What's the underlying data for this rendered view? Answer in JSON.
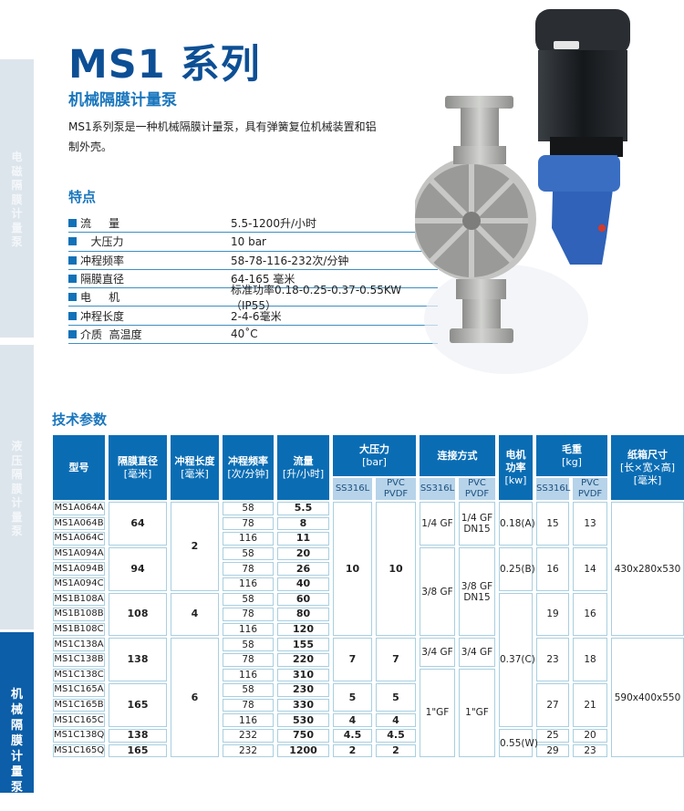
{
  "sidebar": {
    "tabs": [
      {
        "label": [
          "电",
          "磁",
          "隔",
          "膜",
          "计",
          "量",
          "泵"
        ],
        "active": false
      },
      {
        "label": [
          "液",
          "压",
          "隔",
          "膜",
          "计",
          "量",
          "泵"
        ],
        "active": false
      },
      {
        "label": [
          "机",
          "械",
          "隔",
          "膜",
          "计",
          "量",
          "泵",
          "及"
        ],
        "active": true
      }
    ]
  },
  "header": {
    "title": "MS1 系列",
    "subtitle": "机械隔膜计量泵",
    "description": "MS1系列泵是一种机械隔膜计量泵，具有弹簧复位机械装置和铝制外壳。"
  },
  "features": {
    "title": "特点",
    "items": [
      {
        "label": "流     量",
        "value": "5.5-1200升/小时"
      },
      {
        "label": "   大压力",
        "value": "10 bar"
      },
      {
        "label": "冲程频率",
        "value": "58-78-116-232次/分钟"
      },
      {
        "label": "隔膜直径",
        "value": "64-165 毫米"
      },
      {
        "label": "电     机",
        "value": "标准功率0.18-0.25-0.37-0.55KW（IP55）"
      },
      {
        "label": "冲程长度",
        "value": "2-4-6毫米"
      },
      {
        "label": "介质  高温度",
        "value": "40˚C"
      }
    ]
  },
  "pump_image": {
    "colors": {
      "motor": "#23272b",
      "housing": "#2f62b8",
      "steel": "#a8a9a6"
    }
  },
  "tech": {
    "title": "技术参数",
    "headers": {
      "model": "型号",
      "diameter": "隔膜直径",
      "diameter_unit": "[毫米]",
      "stroke": "冲程长度",
      "stroke_unit": "[毫米]",
      "freq": "冲程频率",
      "freq_unit": "[次/分钟]",
      "flow": "流量",
      "flow_unit": "[升/小时]",
      "pressure": "大压力",
      "pressure_unit": "[bar]",
      "conn": "连接方式",
      "power": "电机\n功率",
      "power_unit": "[kw]",
      "weight": "毛重",
      "weight_unit": "[kg]",
      "box": "纸箱尺寸",
      "box_unit1": "[长×宽×高]",
      "box_unit2": "[毫米]",
      "ss": "SS316L",
      "pvc": "PVC\nPVDF"
    },
    "rows": [
      {
        "model": "MS1A064A",
        "freq": "58",
        "flow": "5.5"
      },
      {
        "model": "MS1A064B",
        "freq": "78",
        "flow": "8"
      },
      {
        "model": "MS1A064C",
        "freq": "116",
        "flow": "11"
      },
      {
        "model": "MS1A094A",
        "freq": "58",
        "flow": "20"
      },
      {
        "model": "MS1A094B",
        "freq": "78",
        "flow": "26"
      },
      {
        "model": "MS1A094C",
        "freq": "116",
        "flow": "40"
      },
      {
        "model": "MS1B108A",
        "freq": "58",
        "flow": "60"
      },
      {
        "model": "MS1B108B",
        "freq": "78",
        "flow": "80"
      },
      {
        "model": "MS1B108C",
        "freq": "116",
        "flow": "120"
      },
      {
        "model": "MS1C138A",
        "freq": "58",
        "flow": "155"
      },
      {
        "model": "MS1C138B",
        "freq": "78",
        "flow": "220"
      },
      {
        "model": "MS1C138C",
        "freq": "116",
        "flow": "310"
      },
      {
        "model": "MS1C165A",
        "freq": "58",
        "flow": "230"
      },
      {
        "model": "MS1C165B",
        "freq": "78",
        "flow": "330"
      },
      {
        "model": "MS1C165C",
        "freq": "116",
        "flow": "530"
      },
      {
        "model": "MS1C138Q",
        "freq": "232",
        "flow": "750"
      },
      {
        "model": "MS1C165Q",
        "freq": "232",
        "flow": "1200"
      }
    ],
    "diameter": [
      "64",
      "94",
      "108",
      "138",
      "165",
      "138",
      "165"
    ],
    "stroke": [
      "2",
      "4",
      "6"
    ],
    "pressure_ss": [
      "10",
      "7",
      "5",
      "4",
      "4.5",
      "2"
    ],
    "pressure_pvc": [
      "10",
      "7",
      "5",
      "4",
      "4.5",
      "2"
    ],
    "conn_ss": [
      "1/4 GF",
      "3/8 GF",
      "3/4 GF",
      "1\"GF"
    ],
    "conn_pvc": [
      "1/4 GF\nDN15",
      "3/8 GF\nDN15",
      "3/4 GF",
      "1\"GF"
    ],
    "power": [
      "0.18(A)",
      "0.25(B)",
      "0.37(C)",
      "0.55(W)"
    ],
    "weight_ss": [
      "15",
      "16",
      "19",
      "23",
      "27",
      "25",
      "29"
    ],
    "weight_pvc": [
      "13",
      "14",
      "16",
      "18",
      "21",
      "20",
      "23"
    ],
    "box": [
      "430x280x530",
      "590x400x550"
    ]
  }
}
